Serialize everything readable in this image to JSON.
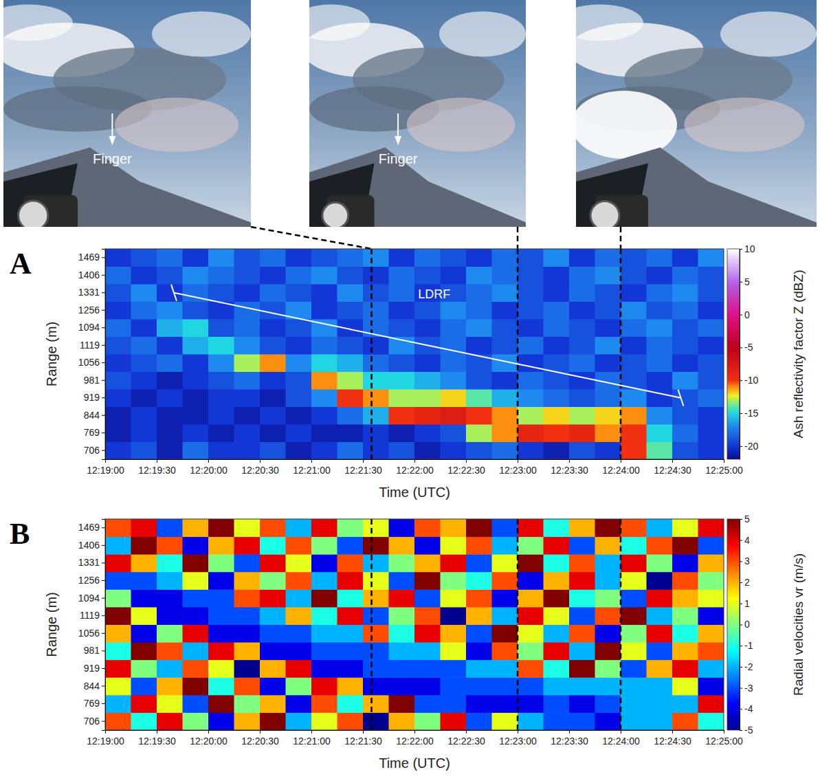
{
  "photos": [
    {
      "annotation": "Finger"
    },
    {
      "annotation": "Finger"
    },
    {}
  ],
  "chart_data": [
    {
      "type": "heatmap",
      "panel_label": "A",
      "color": "reflectivity",
      "xlabel": "Time (UTC)",
      "ylabel": "Range (m)",
      "xlim": [
        "12:19:00",
        "12:25:00"
      ],
      "xticks": [
        "12:19:00",
        "12:19:30",
        "12:20:00",
        "12:20:30",
        "12:21:00",
        "12:21:30",
        "12:22:00",
        "12:22:30",
        "12:23:00",
        "12:23:30",
        "12:24:00",
        "12:24:30",
        "12:25:00"
      ],
      "x_bins": [
        "12:19:00",
        "12:19:15",
        "12:19:30",
        "12:19:45",
        "12:20:00",
        "12:20:15",
        "12:20:30",
        "12:20:45",
        "12:21:00",
        "12:21:15",
        "12:21:30",
        "12:21:45",
        "12:22:00",
        "12:22:15",
        "12:22:30",
        "12:22:45",
        "12:23:00",
        "12:23:15",
        "12:23:30",
        "12:23:45",
        "12:24:00",
        "12:24:15",
        "12:24:30",
        "12:24:45",
        "12:25:00"
      ],
      "y_categories": [
        706,
        769,
        844,
        919,
        981,
        1056,
        1119,
        1094,
        1256,
        1331,
        1406,
        1469
      ],
      "z": [
        [
          -20,
          -19,
          -21,
          -18,
          -20,
          -20,
          -19,
          -21,
          -20,
          -18,
          -20,
          -19,
          -21,
          -20,
          -19,
          -18,
          -20,
          -21,
          -19,
          -20,
          -10,
          -14,
          -19,
          -20
        ],
        [
          -21,
          -20,
          -21,
          -20,
          -21,
          -20,
          -21,
          -20,
          -21,
          -21,
          -20,
          -21,
          -20,
          -19,
          -13,
          -11,
          -9,
          -10,
          -9,
          -11,
          -10,
          -15,
          -18,
          -20
        ],
        [
          -21,
          -20,
          -21,
          -21,
          -20,
          -21,
          -20,
          -21,
          -20,
          -18,
          -16,
          -10,
          -9,
          -8,
          -10,
          -11,
          -13,
          -12,
          -13,
          -12,
          -11,
          -17,
          -19,
          -20
        ],
        [
          -20,
          -21,
          -20,
          -21,
          -20,
          -20,
          -21,
          -19,
          -17,
          -10,
          -11,
          -13,
          -13,
          -12,
          -14,
          -16,
          -17,
          -18,
          -19,
          -18,
          -17,
          -20,
          -19,
          -18
        ],
        [
          -19,
          -20,
          -21,
          -20,
          -19,
          -18,
          -20,
          -19,
          -11,
          -13,
          -15,
          -15,
          -16,
          -17,
          -19,
          -20,
          -18,
          -19,
          -20,
          -18,
          -19,
          -20,
          -17,
          -19
        ],
        [
          -20,
          -19,
          -18,
          -20,
          -17,
          -13,
          -11,
          -17,
          -15,
          -16,
          -18,
          -19,
          -20,
          -18,
          -19,
          -17,
          -20,
          -19,
          -18,
          -20,
          -19,
          -18,
          -20,
          -19
        ],
        [
          -19,
          -18,
          -20,
          -16,
          -15,
          -17,
          -19,
          -20,
          -18,
          -19,
          -20,
          -17,
          -19,
          -18,
          -20,
          -19,
          -18,
          -20,
          -19,
          -17,
          -20,
          -18,
          -19,
          -20
        ],
        [
          -18,
          -20,
          -16,
          -15,
          -19,
          -18,
          -20,
          -19,
          -17,
          -20,
          -18,
          -19,
          -20,
          -18,
          -17,
          -19,
          -20,
          -18,
          -19,
          -20,
          -18,
          -17,
          -19,
          -18
        ],
        [
          -20,
          -18,
          -17,
          -19,
          -20,
          -18,
          -19,
          -17,
          -20,
          -19,
          -18,
          -20,
          -19,
          -17,
          -18,
          -20,
          -19,
          -18,
          -20,
          -19,
          -17,
          -19,
          -18,
          -20
        ],
        [
          -19,
          -17,
          -20,
          -18,
          -19,
          -20,
          -18,
          -19,
          -20,
          -17,
          -19,
          -18,
          -20,
          -19,
          -18,
          -17,
          -19,
          -20,
          -18,
          -19,
          -20,
          -18,
          -17,
          -19
        ],
        [
          -18,
          -20,
          -19,
          -17,
          -18,
          -19,
          -20,
          -18,
          -17,
          -19,
          -20,
          -18,
          -19,
          -20,
          -17,
          -18,
          -19,
          -20,
          -18,
          -17,
          -19,
          -20,
          -18,
          -19
        ],
        [
          -20,
          -19,
          -18,
          -20,
          -17,
          -19,
          -18,
          -20,
          -19,
          -18,
          -17,
          -20,
          -18,
          -19,
          -20,
          -18,
          -19,
          -17,
          -20,
          -18,
          -19,
          -18,
          -20,
          -17
        ]
      ],
      "colorbar": {
        "label": "Ash reflectivity factor Z (dBZ)",
        "range": [
          -22,
          10
        ],
        "ticks": [
          -20,
          -15,
          -10,
          -5,
          0,
          5,
          10
        ]
      },
      "annotations": [
        {
          "text": "LDRF",
          "x": [
            "12:19:40",
            "12:24:35"
          ],
          "y": [
            1331,
            919
          ]
        }
      ],
      "markers": [
        "12:21:35",
        "12:23:00",
        "12:24:00"
      ]
    },
    {
      "type": "heatmap",
      "panel_label": "B",
      "color": "jet",
      "xlabel": "Time (UTC)",
      "ylabel": "Range (m)",
      "xlim": [
        "12:19:00",
        "12:25:00"
      ],
      "xticks": [
        "12:19:00",
        "12:19:30",
        "12:20:00",
        "12:20:30",
        "12:21:00",
        "12:21:30",
        "12:22:00",
        "12:22:30",
        "12:23:00",
        "12:23:30",
        "12:24:00",
        "12:24:30",
        "12:25:00"
      ],
      "x_bins": [
        "12:19:00",
        "12:19:15",
        "12:19:30",
        "12:19:45",
        "12:20:00",
        "12:20:15",
        "12:20:30",
        "12:20:45",
        "12:21:00",
        "12:21:15",
        "12:21:30",
        "12:21:45",
        "12:22:00",
        "12:22:15",
        "12:22:30",
        "12:22:45",
        "12:23:00",
        "12:23:15",
        "12:23:30",
        "12:23:45",
        "12:24:00",
        "12:24:15",
        "12:24:30",
        "12:24:45",
        "12:25:00"
      ],
      "y_categories": [
        706,
        769,
        844,
        919,
        981,
        1056,
        1119,
        1094,
        1256,
        1331,
        1406,
        1469
      ],
      "z": [
        [
          3,
          -1,
          4,
          0,
          -4,
          2,
          5,
          -2,
          1,
          3,
          -5,
          2,
          0,
          4,
          -3,
          1,
          -2,
          -3,
          -3,
          -4,
          -2,
          -2,
          3,
          -1
        ],
        [
          -2,
          4,
          1,
          -3,
          5,
          0,
          2,
          -4,
          3,
          -1,
          2,
          5,
          -3,
          -3,
          -4,
          -4,
          -4,
          -3,
          -4,
          -3,
          -2,
          -2,
          -2,
          4
        ],
        [
          1,
          -3,
          2,
          5,
          -1,
          3,
          -4,
          0,
          4,
          2,
          -4,
          -4,
          -4,
          -3,
          -3,
          -3,
          -3,
          -2,
          -2,
          -2,
          -2,
          -2,
          1,
          -4
        ],
        [
          4,
          0,
          -2,
          3,
          1,
          -5,
          2,
          4,
          -4,
          -4,
          -3,
          -3,
          -3,
          -3,
          -2,
          -2,
          3,
          -1,
          5,
          0,
          -3,
          2,
          4,
          -2
        ],
        [
          -1,
          5,
          3,
          -2,
          4,
          2,
          -4,
          -4,
          -3,
          -3,
          -3,
          -2,
          -2,
          1,
          -4,
          3,
          0,
          4,
          -2,
          5,
          1,
          -3,
          2,
          3
        ],
        [
          2,
          -4,
          0,
          4,
          -4,
          -4,
          -3,
          -3,
          -2,
          -2,
          3,
          -1,
          4,
          2,
          -3,
          5,
          1,
          -2,
          3,
          -4,
          0,
          4,
          -1,
          2
        ],
        [
          5,
          1,
          -4,
          -4,
          -3,
          -3,
          -2,
          2,
          -1,
          4,
          -3,
          0,
          3,
          -5,
          2,
          -2,
          4,
          1,
          -3,
          3,
          5,
          -2,
          0,
          -4
        ],
        [
          0,
          -4,
          -4,
          -3,
          -3,
          3,
          4,
          -2,
          5,
          -1,
          2,
          4,
          -3,
          1,
          3,
          -4,
          2,
          5,
          -1,
          0,
          -3,
          4,
          2,
          1
        ],
        [
          -3,
          -3,
          -2,
          1,
          -4,
          2,
          0,
          3,
          -2,
          4,
          1,
          -3,
          5,
          0,
          -1,
          3,
          -4,
          2,
          4,
          -2,
          1,
          -5,
          3,
          0
        ],
        [
          4,
          2,
          -1,
          5,
          0,
          -3,
          4,
          1,
          -4,
          3,
          -2,
          0,
          2,
          4,
          -3,
          1,
          5,
          -1,
          3,
          -2,
          4,
          0,
          -4,
          2
        ],
        [
          -2,
          5,
          3,
          -4,
          2,
          4,
          -1,
          3,
          0,
          -3,
          5,
          2,
          -4,
          1,
          3,
          -2,
          0,
          4,
          -3,
          2,
          -1,
          3,
          5,
          -3
        ],
        [
          3,
          4,
          -3,
          2,
          5,
          1,
          3,
          -2,
          4,
          0,
          1,
          -4,
          3,
          2,
          5,
          -3,
          4,
          -1,
          2,
          5,
          3,
          -2,
          1,
          4
        ]
      ],
      "colorbar": {
        "label": "Radial velocities vr (m/s)",
        "range": [
          -5,
          5
        ],
        "ticks": [
          -5,
          -4,
          -3,
          -2,
          -1,
          0,
          1,
          2,
          3,
          4,
          5
        ]
      },
      "markers": [
        "12:21:35",
        "12:23:00",
        "12:24:00"
      ]
    }
  ]
}
